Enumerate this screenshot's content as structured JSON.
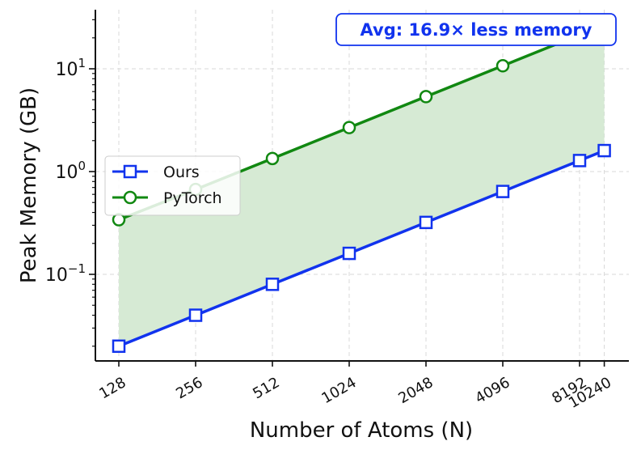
{
  "chart_data": {
    "type": "line",
    "xlabel": "Number of Atoms (N)",
    "ylabel": "Peak Memory (GB)",
    "x_scale": "log2",
    "y_scale": "log10",
    "xlim": [
      110,
      12000
    ],
    "ylim": [
      0.013,
      40
    ],
    "grid": true,
    "legend_position": "center-left",
    "annotation": "Avg: 16.9× less memory",
    "x_ticks": [
      {
        "value": 128,
        "label": "128"
      },
      {
        "value": 256,
        "label": "256"
      },
      {
        "value": 512,
        "label": "512"
      },
      {
        "value": 1024,
        "label": "1024"
      },
      {
        "value": 2048,
        "label": "2048"
      },
      {
        "value": 4096,
        "label": "4096"
      },
      {
        "value": 8192,
        "label": "8192"
      },
      {
        "value": 10240,
        "label": "10240"
      }
    ],
    "y_ticks": [
      {
        "value": 0.1,
        "base": "10",
        "exp": "−1"
      },
      {
        "value": 1,
        "base": "10",
        "exp": "0"
      },
      {
        "value": 10,
        "base": "10",
        "exp": "1"
      }
    ],
    "x": [
      128,
      256,
      512,
      1024,
      2048,
      4096,
      8192,
      10240
    ],
    "series": [
      {
        "name": "Ours",
        "marker": "square",
        "color": "#1133ee",
        "values": [
          0.02,
          0.04,
          0.08,
          0.16,
          0.32,
          0.64,
          1.28,
          1.6
        ]
      },
      {
        "name": "PyTorch",
        "marker": "circle",
        "color": "#118811",
        "values": [
          0.34,
          0.67,
          1.34,
          2.68,
          5.36,
          10.7,
          21.4,
          26.8
        ]
      }
    ],
    "fill_between_color": "#d6ead4",
    "annotation_color": "#1133ee"
  }
}
